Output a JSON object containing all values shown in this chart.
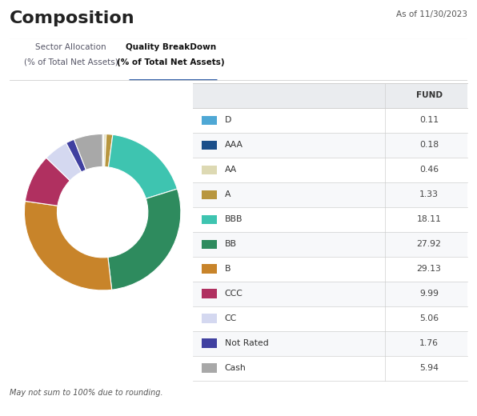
{
  "title": "Composition",
  "date_label": "As of 11/30/2023",
  "tab1_line1": "Sector Allocation",
  "tab1_line2": "(% of Total Net Assets)",
  "tab2_line1": "Quality BreakDown",
  "tab2_line2": "(% of Total Net Assets)",
  "footer": "May not sum to 100% due to rounding.",
  "table_header": "FUND",
  "categories": [
    "D",
    "AAA",
    "AA",
    "A",
    "BBB",
    "BB",
    "B",
    "CCC",
    "CC",
    "Not Rated",
    "Cash"
  ],
  "values": [
    0.11,
    0.18,
    0.46,
    1.33,
    18.11,
    27.92,
    29.13,
    9.99,
    5.06,
    1.76,
    5.94
  ],
  "colors": [
    "#4fa8d5",
    "#1b4f8a",
    "#ddd9b3",
    "#b8963e",
    "#3ec4b0",
    "#2e8b5e",
    "#c8842a",
    "#b03060",
    "#d4d8f0",
    "#4040a0",
    "#a8a8a8"
  ],
  "bg_color": "#ffffff",
  "table_header_bg": "#eaecef",
  "row_bg_even": "#ffffff",
  "row_bg_odd": "#f7f8fa",
  "text_color": "#333333",
  "border_color": "#d0d0d0",
  "tab2_underline_color": "#2050a0",
  "title_color": "#222222",
  "date_color": "#555555",
  "tab1_color": "#555566",
  "tab2_color": "#111111",
  "value_color": "#444444"
}
